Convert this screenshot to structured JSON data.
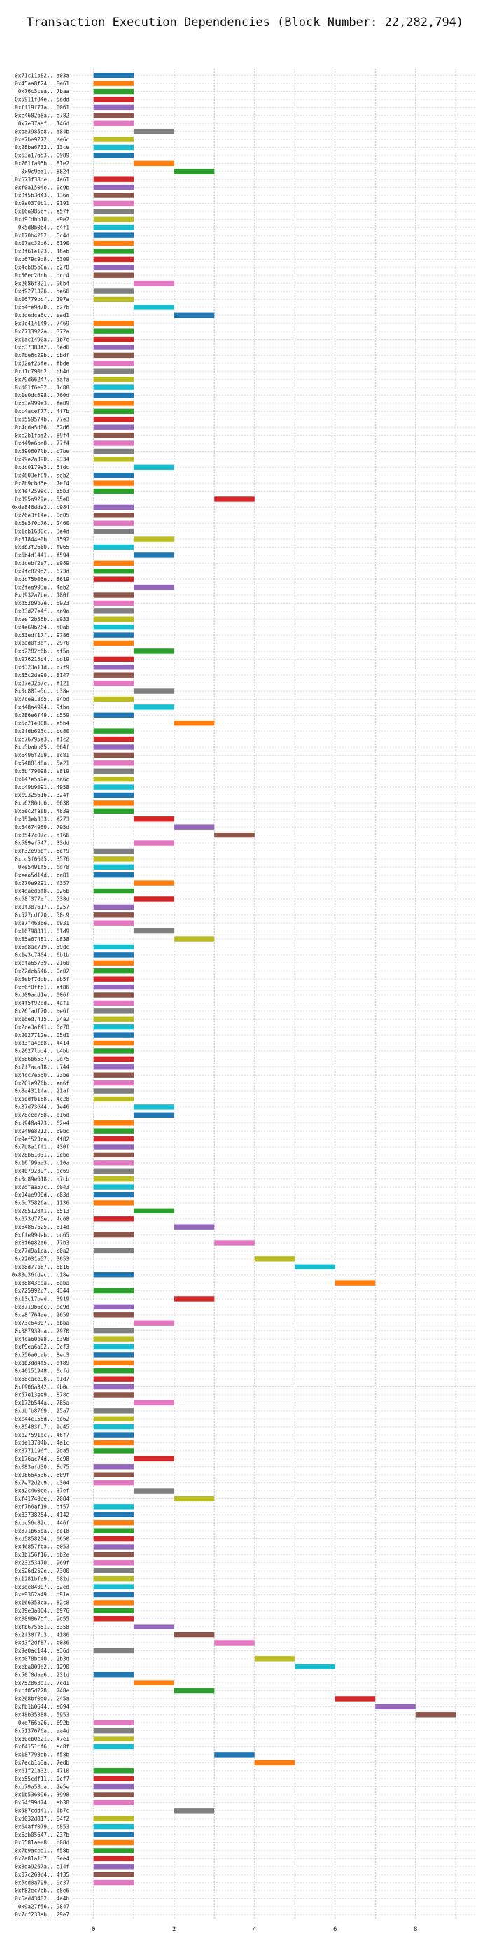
{
  "chart_data": {
    "type": "bar",
    "orientation": "horizontal",
    "title": "Transaction Execution Dependencies (Block Number: 22,282,794)",
    "xlabel": "",
    "ylabel": "",
    "xlim": [
      -0.5,
      9.5
    ],
    "x_ticks": [
      "0",
      "2",
      "4",
      "6",
      "8"
    ],
    "x_tick_values": [
      0,
      2,
      4,
      6,
      8
    ],
    "grid": true,
    "bar_height_fraction": 0.65,
    "palette": [
      "#1f77b4",
      "#ff7f0e",
      "#2ca02c",
      "#d62728",
      "#9467bd",
      "#8c564b",
      "#e377c2",
      "#7f7f7f",
      "#bcbd22",
      "#17becf"
    ],
    "labels": [
      "0x71c11b82...a03a",
      "0x45aa8f24...8e61",
      "0x76c5cea...7baa",
      "0x5911f84e...5add",
      "0xff19f77a...0061",
      "0xc4682b8a...e782",
      "0x7e37aaf...146d",
      "0xba3985e8...a84b",
      "0xe7be9272...ee6c",
      "0x28ba6732...13ce",
      "0x63a17a53...0989",
      "0x761fa05b...81e2",
      "0x9c9ea1...8824",
      "0x573f38de...4a61",
      "0xf0a1504e...0c9b",
      "0x8f5b3d43...136a",
      "0x9a0370b1...9191",
      "0x16a985cf...e57f",
      "0xd9fdbb10...a9e2",
      "0x5d8b0b4...e4f1",
      "0x170b4202...5c4d",
      "0x07ac32d6...6190",
      "0x3f61e123...16eb",
      "0xb679c9d8...6309",
      "0x4cb85b0a...c278",
      "0x56ec2dcb...dcc4",
      "0x2686f821...96b4",
      "0xd9271326...de66",
      "0x06779bcf...197a",
      "0xb4fe9d70...b27b",
      "0xddedca6c...ead1",
      "0x9c414149...7469",
      "0x2733922a...372a",
      "0x1ac1490a...1b7e",
      "0xc37383f2...8ed6",
      "0x7be6c29b...bbdf",
      "0x82af25fe...fbde",
      "0xd1c790b2...cb4d",
      "0x79d66247...aafa",
      "0xd01f6e32...1c80",
      "0x1e0dc598...760d",
      "0xb3e999e3...fe09",
      "0xc4acef77...4f7b",
      "0x6559574b...77e3",
      "0x4cda5d06...62d6",
      "0xc2b1fba2...89f4",
      "0xd49e6ba0...77f4",
      "0x390607lb...b7be",
      "0x99e2a390...9334",
      "0xdc0179a5...6fdc",
      "0x9803ef89...adb2",
      "0x7b9cbd5e...7ef4",
      "0x4e7259ac...85b3",
      "0x395a929e...55e0",
      "0xde846dda2...c984",
      "0x76e3f14e...0d05",
      "0x6e5f0c76...2460",
      "0x1cb1630c...3e4d",
      "0x51844e0b...1592",
      "0x3b3f2680...f965",
      "0x6b4d1441...f594",
      "0xdcebf2e7...e989",
      "0x9fc829d2...673d",
      "0xdc75b06e...8619",
      "0x2fea993a...4ab2",
      "0xd932a7be...180f",
      "0xd52b9b2e...6923",
      "0x83d27e4f...aa9a",
      "0xeef2b56b...e933",
      "0x4e69b264...a0ab",
      "0x53edf17f...9786",
      "0xead0f3df...2970",
      "0xb2282c6b...af5a",
      "0x976215b4...cd19",
      "0xd323a11d...c7f9",
      "0x35c2da90...8147",
      "0x87e32b7c...f121",
      "0x0c881e5c...b38e",
      "0x7cea18b5...a4bd",
      "0xd48a4994...9fba",
      "0x286e6f49...c559",
      "0x6c21e008...e5b4",
      "0x2fdb623c...bc80",
      "0xc76795e3...f1c2",
      "0xb5babb05...064f",
      "0x6496f209...ec81",
      "0x54881d8a...5e21",
      "0x6bf79098...e819",
      "0x147e5a9e...da6c",
      "0xc49b9091...4958",
      "0xc9325616...324f",
      "0xb6280dd6...0630",
      "0x5ec2faeb...483a",
      "0x853eb333...f273",
      "0x64674960...795d",
      "0x8547c07c...a166",
      "0x589ef547...33dd",
      "0xf32e9bbf...5ef9",
      "0xcd5f66f5...3576",
      "0xe5491f5...dd78",
      "0xeea5d14d...ba81",
      "0x270e9291...f357",
      "0x4daedbf8...a26b",
      "0x68f377af...538d",
      "0x9f387617...b257",
      "0x527cdf20...58c9",
      "0xa7f4636e...c931",
      "0x16798811...81d9",
      "0x85a67481...c838",
      "0x6d8ac719...59dc",
      "0x1e3c7404...6b1b",
      "0xcfa65739...2160",
      "0x22dcb546...0c02",
      "0x8ebf7ddb...eb5f",
      "0xc6f0ffb1...ef86",
      "0xd09acd1e...006f",
      "0x4f5f92dd...4af1",
      "0x26fadf70...ae6f",
      "0x1ded7415...04a2",
      "0x2ce3af41...6c78",
      "0x2027712e...05d1",
      "0xd3fa4cb8...4414",
      "0x2627lbd4...c4bb",
      "0x586b6537...9d75",
      "0x7f7aca18...b744",
      "0x4cc7e550...23be",
      "0x201e976b...ea6f",
      "0x8a4311fa...21af",
      "0xaedfb168...4c28",
      "0x87d73644...1e46",
      "0x78cee758...e16d",
      "0xd948a423...62e4",
      "0x949e8212...69bc",
      "0x9ef523ca...4f82",
      "0x7b8a1ff1...430f",
      "0x28b61031...0ebe",
      "0x16f99aa3...c10a",
      "0x4079239f...ac69",
      "0x0d89e618...a7cb",
      "0x0dfaa57c...c043",
      "0x94ae990d...c83d",
      "0x6d75826a...1136",
      "0x285128f1...6513",
      "0x673d775e...4c68",
      "0x64867625...614d",
      "0xffe99deb...cd65",
      "0x8f6e82a6...77b3",
      "0x77d9a1ca...c0a2",
      "0x92031a57...3653",
      "0xe8d77b87...6816",
      "0x83d36fdec...c18e",
      "0x88843caa...8aba",
      "0x725992c7...4344",
      "0x13c17bed...3919",
      "0x8719b6cc...ae9d",
      "0xe8f764ae...2659",
      "0x73c64007...dbba",
      "0x387939da...2970",
      "0x4ca60ba8...b398",
      "0xf9ea6a92...9cf3",
      "0x556a0cab...8ec3",
      "0xdb3dd4f5...df89",
      "0x46151948...0cfd",
      "0x68cace98...a1d7",
      "0xf906a342...fb0c",
      "0x57e13ee9...878c",
      "0x172b544a...785a",
      "0xdbfb8769...25a7",
      "0xc44c155d...de62",
      "0x85483fd7...9d45",
      "0xb27591dc...46f7",
      "0xde13704b...4a1c",
      "0x8771196f...2da5",
      "0x176ac74d...8e98",
      "0x083afd30...8d75",
      "0x98664536...809f",
      "0x7e72d2c9...c304",
      "0xa2c460ce...37ef",
      "0xf41740ce...2084",
      "0xf7b6af19...df57",
      "0x33738254...4142",
      "0xbc56c82c...446f",
      "0x871b65ea...ce18",
      "0xd5858254...0650",
      "0x46857fba...e053",
      "0x3b156f16...db2e",
      "0x23253470...969f",
      "0x526d252e...7300",
      "0x1281bfa9...682d",
      "0x0de04007...32ed",
      "0xe9362a49...d91a",
      "0x166353ca...82c8",
      "0x89e3a064...0976",
      "0x889867df...9d55",
      "0xfb675b51...8358",
      "0x2f30f7d3...4186",
      "0xd3f2df87...b036",
      "0x9e0ac144...a36d",
      "0xb078bc40...2b3d",
      "0xeba009d2...1290",
      "0x50f0daa6...231d",
      "0x752863a1...7cd1",
      "0xcf05d228...748e",
      "0x268bf0e0...245a",
      "0xfb1b0644...a694",
      "0x48b35388...5953",
      "0xd766b26...692b",
      "0x5137676a...aa4d",
      "0xb0eb0e21...47e1",
      "0xf4151cf6...ac8f",
      "0x187798db...f58b",
      "0x7ecb1b3a...7edb",
      "0x61f21a32...4710",
      "0xb55cdf11...0ef7",
      "0xb79a58da...2e5e",
      "0x1b536096...3998",
      "0x54f99d74...ab38",
      "0x687cdd41...6b7c",
      "0xd032d817...04f2",
      "0x64aff079...c853",
      "0x6ab05647...237b",
      "0x6581aee8...b08d",
      "0x7b9aced1...f58b",
      "0x2a81a1d7...3ee4",
      "0x8da9267a...e14f",
      "0x07c269c4...4f35",
      "0x5cd0a799...0c37",
      "0xf82ec7eb...b8e6",
      "0x6ad43402...4a4b",
      "0x9a27f56...9847",
      "0x7cf233ab...29e7"
    ],
    "start_values": [
      0,
      0,
      0,
      0,
      0,
      0,
      0,
      1,
      0,
      0,
      0,
      1,
      2,
      0,
      0,
      0,
      0,
      0,
      0,
      0,
      0,
      0,
      0,
      0,
      0,
      0,
      1,
      0,
      0,
      1,
      2,
      0,
      0,
      0,
      0,
      0,
      0,
      0,
      0,
      0,
      0,
      0,
      0,
      0,
      0,
      0,
      0,
      0,
      0,
      1,
      0,
      0,
      0,
      3,
      0,
      0,
      0,
      0,
      1,
      0,
      1,
      0,
      0,
      0,
      1,
      0,
      0,
      0,
      0,
      0,
      0,
      0,
      1,
      0,
      0,
      0,
      0,
      1,
      0,
      1,
      0,
      2,
      0,
      0,
      0,
      0,
      0,
      0,
      0,
      0,
      0,
      0,
      0,
      1,
      2,
      3,
      1,
      0,
      0,
      0,
      0,
      1,
      0,
      1,
      0,
      0,
      0,
      1,
      2,
      0,
      0,
      0,
      0,
      0,
      0,
      0,
      0,
      0,
      0,
      0,
      0,
      0,
      0,
      0,
      0,
      0,
      0,
      0,
      0,
      1,
      1,
      0,
      0,
      0,
      0,
      0,
      0,
      0,
      0,
      0,
      0,
      0,
      1,
      0,
      2,
      0,
      3,
      0,
      4,
      5,
      0,
      6,
      0,
      2,
      0,
      0,
      1,
      0,
      0,
      0,
      0,
      0,
      0,
      0,
      0,
      0,
      1,
      0,
      0,
      0,
      0,
      0,
      0,
      1,
      0,
      0,
      0,
      1,
      2,
      0,
      0,
      0,
      0,
      0,
      0,
      0,
      0,
      0,
      0,
      0,
      0,
      0,
      0,
      0,
      1,
      2,
      3,
      0,
      4,
      5,
      0,
      1,
      2,
      6,
      7,
      8,
      0,
      0,
      0,
      0,
      3,
      4,
      0,
      0,
      0,
      0,
      0,
      2,
      0,
      0,
      0,
      0,
      0,
      0,
      0,
      0,
      0
    ],
    "color_indices": [
      0,
      1,
      2,
      3,
      4,
      5,
      6,
      7,
      8,
      9,
      0,
      1,
      2,
      3,
      4,
      5,
      6,
      7,
      8,
      9,
      0,
      1,
      2,
      3,
      4,
      5,
      6,
      7,
      8,
      9,
      0,
      1,
      2,
      3,
      4,
      5,
      6,
      7,
      8,
      9,
      0,
      1,
      2,
      3,
      4,
      5,
      6,
      7,
      8,
      9,
      0,
      1,
      2,
      3,
      4,
      5,
      6,
      7,
      8,
      9,
      0,
      1,
      2,
      3,
      4,
      5,
      6,
      7,
      8,
      9,
      0,
      1,
      2,
      3,
      4,
      5,
      6,
      7,
      8,
      9,
      0,
      1,
      2,
      3,
      4,
      5,
      6,
      7,
      8,
      9,
      0,
      1,
      2,
      3,
      4,
      5,
      6,
      7,
      8,
      9,
      0,
      1,
      2,
      3,
      4,
      5,
      6,
      7,
      8,
      9,
      0,
      1,
      2,
      3,
      4,
      5,
      6,
      7,
      8,
      9,
      0,
      1,
      2,
      3,
      4,
      5,
      6,
      7,
      8,
      9,
      0,
      1,
      2,
      3,
      4,
      5,
      6,
      7,
      8,
      9,
      0,
      1,
      2,
      3,
      4,
      5,
      6,
      7,
      8,
      9,
      0,
      1,
      2,
      3,
      4,
      5,
      6,
      7,
      8,
      9,
      0,
      1,
      2,
      3,
      4,
      5,
      6,
      7,
      8,
      9,
      0,
      1,
      2,
      3,
      4,
      5,
      6,
      7,
      8,
      9,
      0,
      1,
      2,
      3,
      4,
      5,
      6,
      7,
      8,
      9,
      0,
      1,
      2,
      3,
      4,
      5,
      6,
      7,
      8,
      9,
      0,
      1,
      2,
      3,
      4,
      5,
      6,
      7,
      8,
      9,
      0,
      1,
      2,
      3,
      4,
      5,
      6,
      7,
      8,
      9,
      0,
      1,
      2,
      3,
      4,
      5,
      6
    ]
  }
}
